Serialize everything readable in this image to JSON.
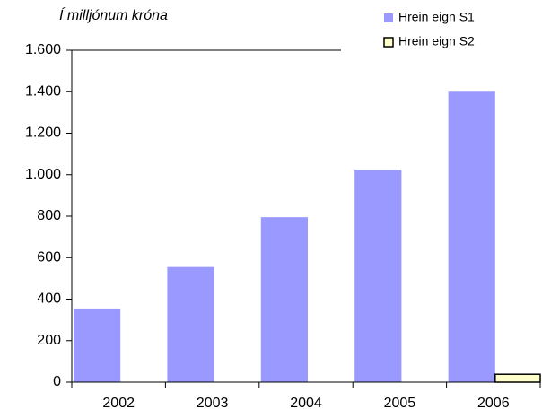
{
  "chart_data": {
    "type": "bar",
    "subtitle": "Í milljónum króna",
    "categories": [
      "2002",
      "2003",
      "2004",
      "2005",
      "2006"
    ],
    "series": [
      {
        "name": "Hrein eign S1",
        "color": "#9999ff",
        "values": [
          355,
          555,
          795,
          1025,
          1400
        ]
      },
      {
        "name": "Hrein eign S2",
        "color": "#ffffcc",
        "values": [
          0,
          0,
          0,
          0,
          38
        ]
      }
    ],
    "ylim": [
      0,
      1600
    ],
    "yticks": [
      0,
      200,
      400,
      600,
      800,
      {
        "value": 1000,
        "label": "1.000"
      },
      {
        "value": 1200,
        "label": "1.200"
      },
      {
        "value": 1400,
        "label": "1.400"
      },
      {
        "value": 1600,
        "label": "1.600"
      }
    ],
    "grid": false,
    "legend": "top-right"
  }
}
